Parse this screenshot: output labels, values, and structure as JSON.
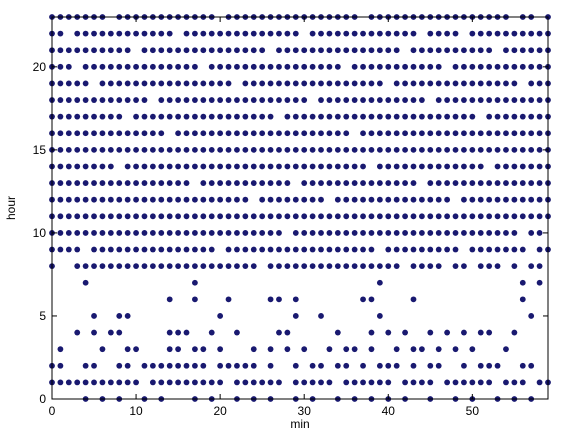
{
  "chart_data": {
    "type": "scatter",
    "x_label": "min",
    "y_label": "hour",
    "color": "#191970",
    "xlim": [
      0,
      59
    ],
    "ylim": [
      0,
      23
    ],
    "xticks": [
      0,
      10,
      20,
      30,
      40,
      50
    ],
    "yticks": [
      0,
      5,
      10,
      15,
      20
    ],
    "rows": [
      {
        "hour": 0,
        "minutes": [
          4,
          6,
          8,
          11,
          13,
          17,
          19,
          22,
          24,
          26,
          29,
          31,
          34,
          36,
          38,
          40,
          42,
          45,
          48,
          50,
          53,
          55,
          57
        ]
      },
      {
        "hour": 1,
        "minutes": [
          0,
          1,
          2,
          3,
          4,
          5,
          6,
          7,
          8,
          9,
          10,
          12,
          13,
          14,
          15,
          16,
          17,
          18,
          19,
          20,
          22,
          23,
          24,
          25,
          26,
          27,
          29,
          30,
          31,
          32,
          33,
          35,
          36,
          37,
          38,
          39,
          40,
          42,
          43,
          44,
          45,
          47,
          48,
          49,
          50,
          51,
          52,
          54,
          55,
          56,
          58,
          59
        ]
      },
      {
        "hour": 2,
        "minutes": [
          0,
          1,
          4,
          5,
          8,
          9,
          11,
          12,
          13,
          14,
          15,
          16,
          17,
          18,
          20,
          21,
          22,
          23,
          24,
          26,
          29,
          31,
          32,
          34,
          35,
          37,
          39,
          40,
          41,
          43,
          45,
          46,
          49,
          51,
          52,
          53,
          56,
          57
        ]
      },
      {
        "hour": 3,
        "minutes": [
          1,
          6,
          9,
          10,
          14,
          15,
          17,
          18,
          20,
          24,
          26,
          28,
          30,
          33,
          35,
          36,
          38,
          41,
          43,
          44,
          46,
          48,
          50,
          54
        ]
      },
      {
        "hour": 4,
        "minutes": [
          3,
          5,
          7,
          8,
          14,
          15,
          16,
          19,
          22,
          27,
          28,
          34,
          38,
          40,
          42,
          45,
          47,
          49,
          51,
          52,
          55
        ]
      },
      {
        "hour": 5,
        "minutes": [
          5,
          8,
          9,
          20,
          29,
          32,
          39,
          57
        ]
      },
      {
        "hour": 6,
        "minutes": [
          14,
          17,
          21,
          26,
          27,
          29,
          37,
          38,
          43,
          56
        ]
      },
      {
        "hour": 7,
        "minutes": [
          4,
          17,
          39,
          56,
          58
        ]
      },
      {
        "hour": 8,
        "minutes": [
          0,
          3,
          4,
          5,
          6,
          7,
          8,
          9,
          10,
          11,
          12,
          13,
          14,
          15,
          16,
          17,
          18,
          19,
          20,
          21,
          22,
          23,
          24,
          26,
          27,
          28,
          29,
          30,
          31,
          32,
          33,
          34,
          35,
          36,
          37,
          38,
          39,
          40,
          41,
          43,
          44,
          45,
          46,
          48,
          49,
          51,
          52,
          53,
          55,
          57,
          58
        ]
      },
      {
        "hour": 9,
        "minutes": [
          0,
          1,
          2,
          3,
          5,
          6,
          7,
          8,
          9,
          10,
          11,
          12,
          13,
          14,
          15,
          16,
          17,
          18,
          19,
          21,
          22,
          23,
          24,
          25,
          26,
          27,
          28,
          29,
          30,
          31,
          32,
          33,
          34,
          35,
          36,
          37,
          38,
          40,
          41,
          42,
          43,
          44,
          45,
          46,
          47,
          48,
          50,
          51,
          52,
          53,
          54,
          55,
          56,
          58,
          59
        ]
      },
      {
        "hour": 10,
        "minutes": [
          0,
          1,
          2,
          3,
          4,
          5,
          6,
          7,
          8,
          9,
          10,
          11,
          12,
          13,
          14,
          15,
          16,
          17,
          18,
          19,
          20,
          21,
          22,
          23,
          24,
          25,
          26,
          27,
          29,
          30,
          31,
          32,
          33,
          34,
          35,
          36,
          37,
          38,
          39,
          40,
          41,
          42,
          43,
          44,
          45,
          46,
          47,
          48,
          49,
          50,
          51,
          52,
          53,
          54,
          55,
          57,
          58
        ]
      },
      {
        "hour": 11,
        "minutes": [
          0,
          1,
          2,
          3,
          4,
          5,
          6,
          7,
          8,
          9,
          10,
          11,
          12,
          13,
          14,
          15,
          16,
          17,
          18,
          19,
          20,
          21,
          22,
          23,
          24,
          25,
          26,
          27,
          28,
          29,
          30,
          31,
          32,
          33,
          34,
          35,
          36,
          37,
          38,
          39,
          40,
          41,
          42,
          43,
          44,
          45,
          46,
          47,
          48,
          49,
          50,
          51,
          52,
          53,
          54,
          55,
          56,
          57,
          58,
          59
        ]
      },
      {
        "hour": 12,
        "minutes": [
          0,
          1,
          2,
          3,
          4,
          5,
          6,
          7,
          8,
          9,
          10,
          11,
          12,
          13,
          14,
          15,
          16,
          17,
          18,
          19,
          20,
          21,
          22,
          23,
          25,
          26,
          27,
          28,
          29,
          30,
          31,
          32,
          34,
          35,
          36,
          37,
          38,
          39,
          40,
          41,
          42,
          43,
          44,
          45,
          46,
          47,
          49,
          50,
          51,
          52,
          53,
          54,
          55,
          56,
          57,
          58,
          59
        ]
      },
      {
        "hour": 13,
        "minutes": [
          0,
          1,
          2,
          3,
          4,
          5,
          6,
          7,
          8,
          9,
          10,
          11,
          12,
          13,
          14,
          15,
          16,
          18,
          19,
          20,
          21,
          22,
          23,
          24,
          25,
          26,
          27,
          28,
          30,
          31,
          32,
          33,
          34,
          35,
          36,
          37,
          38,
          39,
          40,
          41,
          42,
          43,
          45,
          46,
          47,
          48,
          49,
          50,
          51,
          52,
          53,
          54,
          55,
          56,
          57,
          58,
          59
        ]
      },
      {
        "hour": 14,
        "minutes": [
          0,
          1,
          2,
          3,
          4,
          5,
          6,
          7,
          9,
          10,
          11,
          12,
          13,
          14,
          15,
          16,
          17,
          18,
          19,
          20,
          21,
          22,
          23,
          24,
          25,
          26,
          27,
          28,
          29,
          30,
          31,
          32,
          33,
          34,
          35,
          36,
          37,
          39,
          40,
          41,
          42,
          43,
          44,
          45,
          46,
          47,
          48,
          49,
          50,
          51,
          53,
          54,
          55,
          56,
          57,
          58,
          59
        ]
      },
      {
        "hour": 15,
        "minutes": [
          0,
          1,
          2,
          3,
          4,
          5,
          6,
          7,
          8,
          9,
          10,
          11,
          12,
          13,
          14,
          15,
          16,
          17,
          18,
          19,
          20,
          21,
          22,
          23,
          24,
          25,
          26,
          27,
          28,
          29,
          30,
          31,
          32,
          33,
          34,
          35,
          36,
          37,
          38,
          39,
          40,
          41,
          42,
          43,
          44,
          45,
          46,
          47,
          48,
          49,
          50,
          51,
          52,
          53,
          54,
          55,
          56,
          57,
          58,
          59
        ]
      },
      {
        "hour": 16,
        "minutes": [
          0,
          1,
          2,
          3,
          4,
          5,
          6,
          7,
          8,
          9,
          10,
          11,
          12,
          13,
          15,
          16,
          17,
          18,
          19,
          20,
          21,
          22,
          23,
          24,
          25,
          26,
          27,
          28,
          29,
          30,
          31,
          32,
          33,
          34,
          35,
          37,
          38,
          39,
          40,
          41,
          42,
          43,
          44,
          45,
          46,
          47,
          48,
          49,
          50,
          51,
          52,
          53,
          54,
          55,
          56,
          57,
          58,
          59
        ]
      },
      {
        "hour": 17,
        "minutes": [
          0,
          1,
          2,
          3,
          4,
          5,
          6,
          7,
          8,
          10,
          11,
          12,
          13,
          14,
          15,
          16,
          17,
          18,
          19,
          20,
          21,
          22,
          23,
          24,
          25,
          26,
          28,
          29,
          30,
          31,
          32,
          33,
          34,
          35,
          36,
          37,
          38,
          39,
          40,
          41,
          42,
          43,
          44,
          45,
          46,
          47,
          48,
          49,
          50,
          52,
          53,
          54,
          55,
          56,
          57,
          58,
          59
        ]
      },
      {
        "hour": 18,
        "minutes": [
          0,
          1,
          2,
          3,
          4,
          5,
          6,
          7,
          8,
          9,
          10,
          11,
          13,
          14,
          15,
          16,
          17,
          18,
          19,
          20,
          21,
          22,
          23,
          24,
          25,
          26,
          27,
          28,
          29,
          30,
          32,
          33,
          34,
          35,
          36,
          37,
          38,
          39,
          40,
          41,
          42,
          43,
          44,
          46,
          47,
          48,
          49,
          50,
          51,
          52,
          53,
          54,
          55,
          56,
          57,
          58,
          59
        ]
      },
      {
        "hour": 19,
        "minutes": [
          0,
          1,
          2,
          3,
          4,
          6,
          7,
          8,
          9,
          10,
          11,
          12,
          13,
          14,
          15,
          16,
          17,
          18,
          19,
          20,
          21,
          23,
          24,
          25,
          26,
          27,
          28,
          29,
          30,
          31,
          32,
          33,
          34,
          35,
          36,
          37,
          38,
          39,
          41,
          42,
          43,
          44,
          45,
          46,
          47,
          48,
          49,
          50,
          51,
          52,
          53,
          54,
          55,
          57,
          58,
          59
        ]
      },
      {
        "hour": 20,
        "minutes": [
          0,
          1,
          2,
          4,
          5,
          6,
          7,
          8,
          9,
          10,
          11,
          12,
          13,
          14,
          15,
          16,
          17,
          19,
          20,
          21,
          22,
          23,
          24,
          25,
          26,
          27,
          28,
          29,
          30,
          31,
          32,
          33,
          34,
          36,
          37,
          38,
          39,
          40,
          41,
          42,
          43,
          44,
          45,
          46,
          48,
          49,
          50,
          51,
          52,
          53,
          54,
          55,
          56,
          57,
          58,
          59
        ]
      },
      {
        "hour": 21,
        "minutes": [
          0,
          1,
          2,
          3,
          4,
          5,
          6,
          7,
          8,
          9,
          11,
          12,
          13,
          14,
          15,
          16,
          17,
          18,
          19,
          20,
          21,
          22,
          23,
          24,
          25,
          27,
          28,
          29,
          30,
          31,
          32,
          33,
          34,
          35,
          36,
          37,
          38,
          39,
          40,
          41,
          43,
          44,
          45,
          46,
          47,
          48,
          49,
          50,
          51,
          52,
          54,
          55,
          56,
          57,
          58,
          59
        ]
      },
      {
        "hour": 22,
        "minutes": [
          0,
          1,
          3,
          4,
          5,
          6,
          7,
          8,
          9,
          10,
          11,
          12,
          13,
          14,
          16,
          17,
          18,
          19,
          20,
          21,
          22,
          23,
          24,
          25,
          26,
          27,
          28,
          29,
          31,
          32,
          33,
          34,
          35,
          36,
          37,
          38,
          39,
          40,
          41,
          42,
          43,
          45,
          46,
          47,
          48,
          50,
          51,
          52,
          53,
          54,
          55,
          56,
          57,
          58,
          59
        ]
      },
      {
        "hour": 23,
        "minutes": [
          0,
          1,
          2,
          3,
          4,
          5,
          6,
          8,
          9,
          10,
          11,
          12,
          13,
          14,
          15,
          16,
          17,
          18,
          19,
          21,
          22,
          23,
          24,
          25,
          26,
          27,
          28,
          29,
          30,
          31,
          32,
          33,
          34,
          35,
          36,
          38,
          39,
          40,
          41,
          42,
          43,
          44,
          45,
          46,
          47,
          48,
          49,
          50,
          51,
          52,
          53,
          54,
          56,
          57,
          59
        ]
      }
    ]
  }
}
